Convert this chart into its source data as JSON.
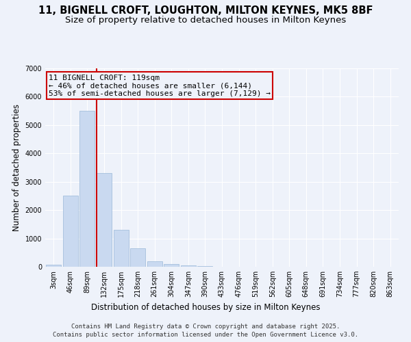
{
  "title_line1": "11, BIGNELL CROFT, LOUGHTON, MILTON KEYNES, MK5 8BF",
  "title_line2": "Size of property relative to detached houses in Milton Keynes",
  "xlabel": "Distribution of detached houses by size in Milton Keynes",
  "ylabel": "Number of detached properties",
  "categories": [
    "3sqm",
    "46sqm",
    "89sqm",
    "132sqm",
    "175sqm",
    "218sqm",
    "261sqm",
    "304sqm",
    "347sqm",
    "390sqm",
    "433sqm",
    "476sqm",
    "519sqm",
    "562sqm",
    "605sqm",
    "648sqm",
    "691sqm",
    "734sqm",
    "777sqm",
    "820sqm",
    "863sqm"
  ],
  "values": [
    75,
    2500,
    5500,
    3300,
    1300,
    650,
    200,
    100,
    50,
    15,
    5,
    3,
    2,
    1,
    1,
    0,
    0,
    0,
    0,
    0,
    0
  ],
  "bar_color": "#c9d9f0",
  "bar_edge_color": "#9ab8d8",
  "vline_x": 2.57,
  "vline_color": "#cc0000",
  "annotation_text": "11 BIGNELL CROFT: 119sqm\n← 46% of detached houses are smaller (6,144)\n53% of semi-detached houses are larger (7,129) →",
  "annotation_box_color": "#cc0000",
  "ylim": [
    0,
    7000
  ],
  "yticks": [
    0,
    1000,
    2000,
    3000,
    4000,
    5000,
    6000,
    7000
  ],
  "background_color": "#eef2fa",
  "grid_color": "#ffffff",
  "footer_line1": "Contains HM Land Registry data © Crown copyright and database right 2025.",
  "footer_line2": "Contains public sector information licensed under the Open Government Licence v3.0.",
  "title_fontsize": 10.5,
  "subtitle_fontsize": 9.5,
  "tick_fontsize": 7,
  "label_fontsize": 8.5,
  "annotation_fontsize": 8,
  "footer_fontsize": 6.5
}
